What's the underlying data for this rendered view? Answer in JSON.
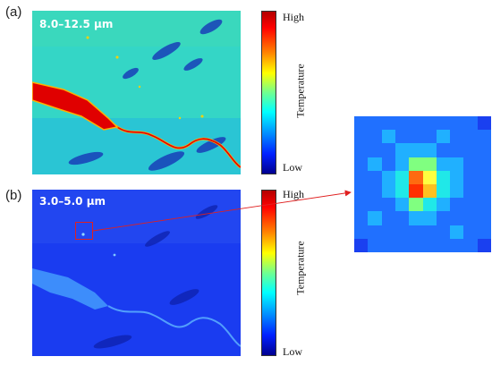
{
  "panel_a": {
    "label": "(a)",
    "band": "8.0–12.5 µm"
  },
  "panel_b": {
    "label": "(b)",
    "band": "3.0–5.0 µm"
  },
  "colorbar": {
    "high": "High",
    "low": "Low",
    "title": "Temperature"
  },
  "colors": {
    "panel_a_bg": "#30d8c8",
    "panel_b_bg": "#1a3cf0",
    "hot": "#e00000",
    "warm": "#ffb000",
    "callout": "#e02020"
  },
  "zoom_heatmap": [
    [
      2,
      2,
      2,
      2,
      2,
      2,
      2,
      2,
      2,
      1
    ],
    [
      2,
      2,
      3,
      2,
      2,
      2,
      3,
      2,
      2,
      2
    ],
    [
      2,
      2,
      2,
      3,
      3,
      3,
      2,
      2,
      2,
      2
    ],
    [
      2,
      3,
      2,
      3,
      5,
      5,
      3,
      3,
      2,
      2
    ],
    [
      2,
      2,
      3,
      4,
      8,
      6,
      4,
      3,
      2,
      2
    ],
    [
      2,
      2,
      3,
      4,
      9,
      7,
      4,
      3,
      2,
      2
    ],
    [
      2,
      2,
      2,
      3,
      5,
      4,
      3,
      2,
      2,
      2
    ],
    [
      2,
      3,
      2,
      2,
      3,
      3,
      2,
      2,
      2,
      2
    ],
    [
      2,
      2,
      2,
      2,
      2,
      2,
      2,
      3,
      2,
      2
    ],
    [
      1,
      2,
      2,
      2,
      2,
      2,
      2,
      2,
      2,
      1
    ]
  ]
}
